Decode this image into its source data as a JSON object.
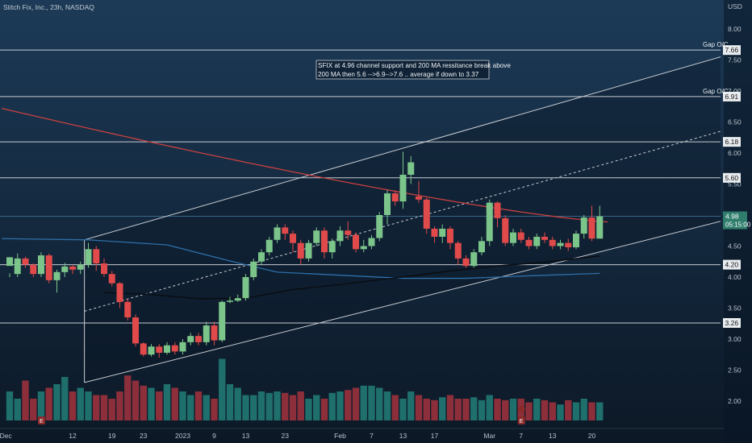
{
  "header": {
    "symbol_title": "Stitch Fix, Inc., 23h, NASDAQ",
    "currency": "USD"
  },
  "annotation": {
    "line1": "SFIX at 4.96  channel support and 200 MA ressitance break above",
    "line2": "200 MA then 5.6 -->6.9-->7.6 .. average if down to 3.37"
  },
  "chart_data": {
    "type": "candlestick",
    "y_axis": {
      "ticks": [
        "8.00",
        "7.50",
        "7.00",
        "6.50",
        "6.00",
        "5.50",
        "5.00",
        "4.50",
        "4.00",
        "3.50",
        "3.00",
        "2.50",
        "2.00"
      ],
      "range": [
        1.5,
        8.2
      ]
    },
    "x_axis": {
      "ticks": [
        {
          "label": "Dec",
          "i": -0.5
        },
        {
          "label": "12",
          "i": 8
        },
        {
          "label": "19",
          "i": 13
        },
        {
          "label": "23",
          "i": 17
        },
        {
          "label": "2023",
          "i": 22
        },
        {
          "label": "9",
          "i": 26
        },
        {
          "label": "13",
          "i": 30
        },
        {
          "label": "23",
          "i": 35
        },
        {
          "label": "Feb",
          "i": 42
        },
        {
          "label": "7",
          "i": 46
        },
        {
          "label": "13",
          "i": 50
        },
        {
          "label": "17",
          "i": 54
        },
        {
          "label": "Mar",
          "i": 61
        },
        {
          "label": "7",
          "i": 65
        },
        {
          "label": "13",
          "i": 69
        },
        {
          "label": "20",
          "i": 74
        }
      ]
    },
    "candles": [
      [
        4.18,
        4.32,
        4.06,
        4.0
      ],
      [
        4.05,
        4.3,
        4.38,
        4.0
      ],
      [
        4.3,
        4.2,
        4.33,
        4.15
      ],
      [
        4.2,
        4.05,
        4.22,
        4.0
      ],
      [
        4.05,
        4.35,
        4.4,
        4.0
      ],
      [
        4.35,
        3.95,
        4.38,
        3.9
      ],
      [
        3.95,
        4.08,
        4.12,
        3.75
      ],
      [
        4.08,
        4.17,
        4.23,
        4.0
      ],
      [
        4.17,
        4.12,
        4.2,
        4.05
      ],
      [
        4.12,
        4.2,
        4.25,
        4.05
      ],
      [
        4.2,
        4.45,
        4.55,
        4.15
      ],
      [
        4.45,
        4.22,
        4.5,
        4.1
      ],
      [
        4.22,
        4.05,
        4.3,
        4.0
      ],
      [
        4.05,
        3.9,
        4.1,
        3.85
      ],
      [
        3.9,
        3.6,
        3.92,
        3.5
      ],
      [
        3.6,
        3.35,
        3.65,
        3.3
      ],
      [
        3.35,
        2.93,
        3.4,
        2.88
      ],
      [
        2.93,
        2.75,
        2.95,
        2.72
      ],
      [
        2.75,
        2.88,
        2.92,
        2.72
      ],
      [
        2.88,
        2.78,
        2.92,
        2.7
      ],
      [
        2.78,
        2.9,
        2.95,
        2.75
      ],
      [
        2.9,
        2.8,
        2.95,
        2.75
      ],
      [
        2.8,
        2.95,
        3.0,
        2.75
      ],
      [
        2.95,
        3.05,
        3.1,
        2.9
      ],
      [
        3.05,
        2.95,
        3.1,
        2.9
      ],
      [
        2.95,
        3.22,
        3.28,
        2.9
      ],
      [
        3.22,
        2.98,
        3.28,
        2.9
      ],
      [
        2.98,
        3.6,
        3.62,
        2.95
      ],
      [
        3.6,
        3.62,
        3.68,
        3.58
      ],
      [
        3.62,
        3.66,
        3.72,
        3.6
      ],
      [
        3.66,
        4.0,
        4.05,
        3.62
      ],
      [
        4.0,
        4.25,
        4.3,
        3.95
      ],
      [
        4.25,
        4.4,
        4.45,
        4.2
      ],
      [
        4.4,
        4.6,
        4.65,
        4.35
      ],
      [
        4.6,
        4.8,
        4.85,
        4.55
      ],
      [
        4.8,
        4.7,
        4.85,
        4.6
      ],
      [
        4.7,
        4.55,
        4.75,
        4.4
      ],
      [
        4.55,
        4.3,
        4.6,
        4.2
      ],
      [
        4.3,
        4.55,
        4.6,
        4.25
      ],
      [
        4.55,
        4.75,
        4.8,
        4.5
      ],
      [
        4.75,
        4.4,
        4.8,
        4.3
      ],
      [
        4.4,
        4.58,
        4.62,
        4.3
      ],
      [
        4.58,
        4.75,
        4.82,
        4.5
      ],
      [
        4.75,
        4.68,
        4.9,
        4.6
      ],
      [
        4.68,
        4.45,
        4.72,
        4.4
      ],
      [
        4.45,
        4.5,
        4.6,
        4.4
      ],
      [
        4.5,
        4.63,
        4.68,
        4.45
      ],
      [
        4.63,
        5.0,
        5.05,
        4.58
      ],
      [
        5.0,
        5.35,
        5.4,
        4.85
      ],
      [
        5.35,
        5.22,
        5.4,
        5.15
      ],
      [
        5.22,
        5.65,
        6.02,
        5.1
      ],
      [
        5.65,
        5.85,
        5.95,
        5.5
      ],
      [
        5.3,
        5.25,
        5.55,
        5.2
      ],
      [
        5.25,
        4.78,
        5.28,
        4.7
      ],
      [
        4.78,
        4.65,
        4.82,
        4.55
      ],
      [
        4.65,
        4.78,
        4.85,
        4.55
      ],
      [
        4.78,
        4.55,
        4.82,
        4.45
      ],
      [
        4.55,
        4.3,
        4.58,
        4.2
      ],
      [
        4.3,
        4.18,
        4.35,
        4.15
      ],
      [
        4.18,
        4.4,
        4.45,
        4.15
      ],
      [
        4.4,
        4.58,
        4.65,
        4.35
      ],
      [
        4.58,
        5.2,
        5.25,
        4.5
      ],
      [
        5.2,
        4.95,
        5.22,
        4.8
      ],
      [
        4.95,
        4.55,
        5.0,
        4.5
      ],
      [
        4.55,
        4.72,
        4.78,
        4.5
      ],
      [
        4.72,
        4.6,
        4.78,
        4.55
      ],
      [
        4.6,
        4.5,
        4.65,
        4.45
      ],
      [
        4.5,
        4.65,
        4.7,
        4.45
      ],
      [
        4.65,
        4.6,
        4.72,
        4.55
      ],
      [
        4.6,
        4.5,
        4.65,
        4.45
      ],
      [
        4.5,
        4.55,
        4.6,
        4.45
      ],
      [
        4.55,
        4.48,
        4.62,
        4.42
      ],
      [
        4.48,
        4.7,
        4.75,
        4.45
      ],
      [
        4.7,
        4.96,
        5.0,
        4.62
      ],
      [
        4.96,
        4.62,
        5.15,
        4.58
      ],
      [
        4.62,
        4.98,
        5.15,
        4.65
      ]
    ],
    "volume": [
      0.4,
      0.3,
      0.55,
      0.3,
      0.4,
      0.45,
      0.5,
      0.6,
      0.4,
      0.45,
      0.4,
      0.35,
      0.35,
      0.3,
      0.4,
      0.62,
      0.55,
      0.48,
      0.45,
      0.4,
      0.5,
      0.45,
      0.4,
      0.35,
      0.4,
      0.35,
      0.3,
      0.85,
      0.5,
      0.45,
      0.35,
      0.35,
      0.4,
      0.38,
      0.4,
      0.38,
      0.35,
      0.4,
      0.3,
      0.35,
      0.3,
      0.38,
      0.4,
      0.42,
      0.45,
      0.48,
      0.48,
      0.45,
      0.4,
      0.35,
      0.3,
      0.4,
      0.35,
      0.3,
      0.28,
      0.32,
      0.35,
      0.3,
      0.3,
      0.32,
      0.28,
      0.35,
      0.3,
      0.28,
      0.3,
      0.3,
      0.25,
      0.3,
      0.28,
      0.25,
      0.22,
      0.28,
      0.25,
      0.3,
      0.25,
      0.25
    ],
    "horizontal_levels": [
      {
        "price": 7.66,
        "label": "7.66",
        "note": "Gap O/C"
      },
      {
        "price": 6.91,
        "label": "6.91",
        "note": "Gap O/C"
      },
      {
        "price": 6.18,
        "label": "6.18",
        "note": ""
      },
      {
        "price": 5.6,
        "label": "5.60",
        "note": ""
      },
      {
        "price": 4.2,
        "label": "4.20",
        "note": ""
      },
      {
        "price": 3.26,
        "label": "3.26",
        "note": ""
      }
    ],
    "last_price": {
      "label": "4.98",
      "countdown": "05:15:00",
      "price": 4.98
    }
  },
  "colors": {
    "background": "#0f1e2e",
    "up": "#7cc58a",
    "down": "#e04a4a",
    "volume_up": "#1f6f6c",
    "volume_down": "#8c2f3a",
    "ma_red": "#c94040",
    "ma_blue": "#2e6fa8",
    "ma_black": "#0a0e14",
    "channel": "#c8ccd2",
    "level": "#c8ccd2"
  }
}
